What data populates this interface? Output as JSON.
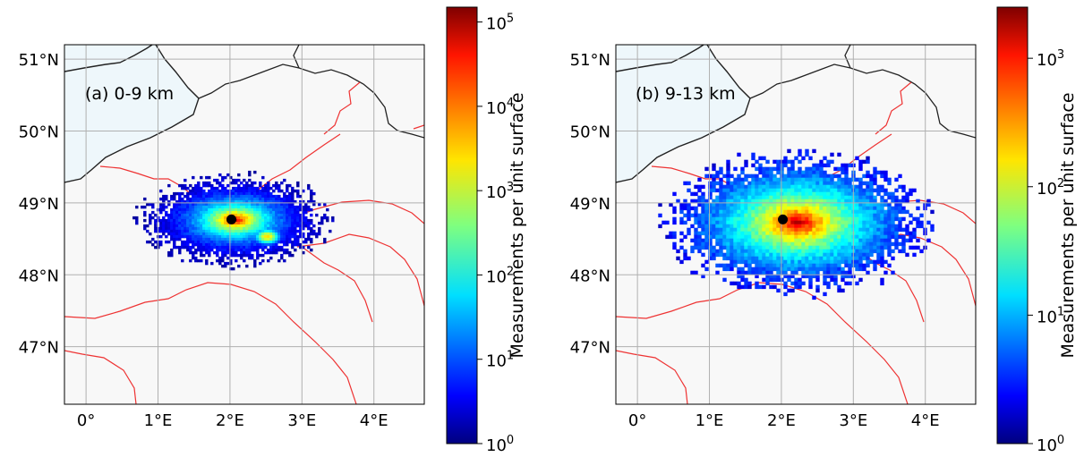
{
  "panels": [
    {
      "label": "(a) 0-9 km",
      "colorbar_label": "Measurements per unit surface",
      "colorbar_ticks": [
        {
          "base": "10",
          "exp": "0",
          "value": 1
        },
        {
          "base": "10",
          "exp": "1",
          "value": 10
        },
        {
          "base": "10",
          "exp": "2",
          "value": 100
        },
        {
          "base": "10",
          "exp": "3",
          "value": 1000
        },
        {
          "base": "10",
          "exp": "4",
          "value": 10000
        },
        {
          "base": "10",
          "exp": "5",
          "value": 100000
        }
      ],
      "colorbar_range": [
        1,
        150000
      ],
      "density": {
        "center_lon": 2.05,
        "center_lat": 48.78,
        "extent_lon": 1.15,
        "extent_lat": 0.55,
        "peak": 100000,
        "secondary_lon": 2.5,
        "secondary_lat": 48.55
      }
    },
    {
      "label": "(b) 9-13 km",
      "colorbar_label": "Measurements per unit surface",
      "colorbar_ticks": [
        {
          "base": "10",
          "exp": "0",
          "value": 1
        },
        {
          "base": "10",
          "exp": "1",
          "value": 10
        },
        {
          "base": "10",
          "exp": "2",
          "value": 100
        },
        {
          "base": "10",
          "exp": "3",
          "value": 1000
        }
      ],
      "colorbar_range": [
        1,
        2500
      ],
      "density": {
        "center_lon": 2.2,
        "center_lat": 48.75,
        "extent_lon": 1.6,
        "extent_lat": 0.85,
        "peak": 2000
      }
    }
  ],
  "map": {
    "lon_range": [
      -0.3,
      4.7
    ],
    "lat_range": [
      46.2,
      51.2
    ],
    "lon_ticks": [
      {
        "value": 0,
        "label": "0°"
      },
      {
        "value": 1,
        "label": "1°E"
      },
      {
        "value": 2,
        "label": "2°E"
      },
      {
        "value": 3,
        "label": "3°E"
      },
      {
        "value": 4,
        "label": "4°E"
      }
    ],
    "lat_ticks": [
      {
        "value": 51,
        "label": "51°N"
      },
      {
        "value": 50,
        "label": "50°N"
      },
      {
        "value": 49,
        "label": "49°N"
      },
      {
        "value": 48,
        "label": "48°N"
      },
      {
        "value": 47,
        "label": "47°N"
      }
    ],
    "site_marker": {
      "lon": 2.02,
      "lat": 48.77
    },
    "colors": {
      "land": "#f8f8f8",
      "sea": "#eef7fb",
      "coast": "#222222",
      "rivers": "#ee3333",
      "grid": "#b0b0b0"
    }
  }
}
